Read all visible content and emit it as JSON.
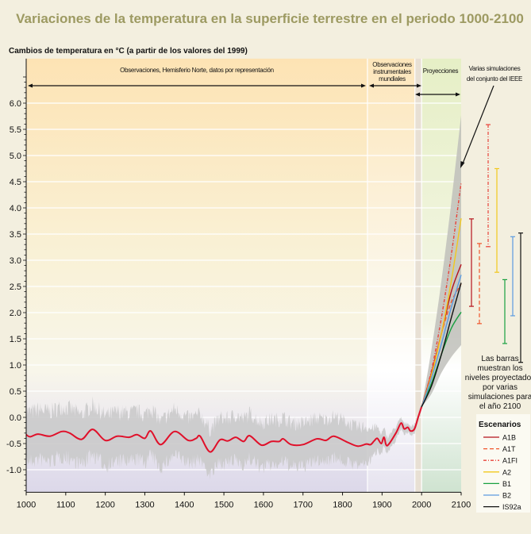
{
  "chart_data": {
    "type": "line",
    "title": "Variaciones de la temperatura en la superficie terrestre en el periodo 1000-2100",
    "ylabel": "Cambios de temperatura en °C (a partir de los valores del 1999)",
    "xlabel": "",
    "xlim": [
      1000,
      2100
    ],
    "ylim": [
      -1.43,
      6.85
    ],
    "x_ticks": [
      "1000",
      "1100",
      "1200",
      "1300",
      "1400",
      "1500",
      "1600",
      "1700",
      "1800",
      "1900",
      "2000",
      "2100"
    ],
    "y_ticks": [
      "6.0",
      "5.5",
      "5.0",
      "4.5",
      "4.0",
      "3.5",
      "3.0",
      "2.5",
      "2.0",
      "1.5",
      "1.0",
      "0.5",
      "0.0",
      "-0.5",
      "-1.0"
    ],
    "grid": true,
    "regions": [
      {
        "label": "Observaciones, Hemisferio Norte, datos por representación",
        "range": [
          1000,
          1863
        ]
      },
      {
        "label": "Observaciones instrumentales mundiales",
        "range": [
          1863,
          1983
        ]
      },
      {
        "label": "Proyecciones",
        "range": [
          2000,
          2100
        ]
      }
    ],
    "observed": {
      "color": "#e0102a",
      "x": [
        1000,
        1010,
        1030,
        1060,
        1090,
        1110,
        1140,
        1168,
        1200,
        1230,
        1260,
        1280,
        1300,
        1315,
        1340,
        1375,
        1410,
        1430,
        1440,
        1465,
        1490,
        1510,
        1530,
        1550,
        1565,
        1595,
        1620,
        1640,
        1650,
        1670,
        1700,
        1735,
        1758,
        1778,
        1811,
        1838,
        1860,
        1871,
        1880,
        1888,
        1898,
        1905,
        1913,
        1935,
        1948,
        1956,
        1965,
        1972,
        1982,
        1992,
        2000
      ],
      "y": [
        -0.33,
        -0.37,
        -0.32,
        -0.36,
        -0.27,
        -0.3,
        -0.42,
        -0.23,
        -0.44,
        -0.36,
        -0.38,
        -0.33,
        -0.4,
        -0.26,
        -0.52,
        -0.27,
        -0.44,
        -0.4,
        -0.36,
        -0.66,
        -0.43,
        -0.45,
        -0.38,
        -0.46,
        -0.35,
        -0.53,
        -0.46,
        -0.46,
        -0.41,
        -0.52,
        -0.52,
        -0.41,
        -0.44,
        -0.36,
        -0.47,
        -0.55,
        -0.51,
        -0.52,
        -0.45,
        -0.4,
        -0.5,
        -0.38,
        -0.54,
        -0.3,
        -0.11,
        -0.22,
        -0.19,
        -0.26,
        -0.22,
        0.02,
        0.2
      ]
    },
    "observed_uncertainty": {
      "color": "#c8c8c8",
      "x": [
        1000,
        1200,
        1400,
        1600,
        1800,
        1860,
        1900,
        1950,
        2000
      ],
      "half_width": [
        0.55,
        0.55,
        0.5,
        0.5,
        0.45,
        0.4,
        0.2,
        0.12,
        0.08
      ]
    },
    "projection_envelope": {
      "color": "#bfbfbb",
      "x": [
        2000,
        2025,
        2050,
        2075,
        2100
      ],
      "upper": [
        0.2,
        1.3,
        2.6,
        4.1,
        5.77
      ],
      "lower": [
        0.2,
        0.45,
        0.85,
        1.15,
        1.38
      ]
    },
    "series": [
      {
        "name": "A1B",
        "color": "#b5121b",
        "dash": "",
        "x": [
          2000,
          2025,
          2050,
          2075,
          2100
        ],
        "y": [
          0.2,
          0.85,
          1.6,
          2.4,
          2.92
        ]
      },
      {
        "name": "A1T",
        "color": "#f0552a",
        "dash": "5,3",
        "x": [
          2000,
          2025,
          2050,
          2075,
          2100
        ],
        "y": [
          0.2,
          0.85,
          1.6,
          2.2,
          2.55
        ]
      },
      {
        "name": "A1FI",
        "color": "#e8433a",
        "dash": "4,2,1,2",
        "x": [
          2000,
          2025,
          2050,
          2075,
          2100
        ],
        "y": [
          0.2,
          0.9,
          1.9,
          3.1,
          4.48
        ]
      },
      {
        "name": "A2",
        "color": "#f2c81e",
        "dash": "",
        "x": [
          2000,
          2025,
          2050,
          2075,
          2100
        ],
        "y": [
          0.2,
          0.8,
          1.6,
          2.6,
          3.8
        ]
      },
      {
        "name": "B1",
        "color": "#18a040",
        "dash": "",
        "x": [
          2000,
          2025,
          2050,
          2075,
          2100
        ],
        "y": [
          0.2,
          0.65,
          1.2,
          1.7,
          2.01
        ]
      },
      {
        "name": "B2",
        "color": "#5b9be0",
        "dash": "",
        "x": [
          2000,
          2025,
          2050,
          2075,
          2100
        ],
        "y": [
          0.2,
          0.75,
          1.4,
          2.1,
          2.72
        ]
      },
      {
        "name": "IS92a",
        "color": "#111111",
        "dash": "",
        "x": [
          2000,
          2025,
          2050,
          2075,
          2100
        ],
        "y": [
          0.2,
          0.6,
          1.2,
          1.9,
          2.57
        ]
      }
    ],
    "bars_2100": [
      {
        "name": "A1B",
        "low": 2.12,
        "high": 3.79
      },
      {
        "name": "A1T",
        "low": 1.79,
        "high": 3.32
      },
      {
        "name": "A1FI",
        "low": 3.26,
        "high": 5.59
      },
      {
        "name": "A2",
        "low": 2.77,
        "high": 4.75
      },
      {
        "name": "B1",
        "low": 1.41,
        "high": 2.63
      },
      {
        "name": "B2",
        "low": 1.94,
        "high": 3.45
      },
      {
        "name": "IS92a",
        "low": 1.05,
        "high": 3.52
      }
    ],
    "annotations": {
      "ensemble": [
        "Varias simulaciones",
        "del conjunto del IEEE"
      ],
      "bars_note": [
        "Las barras",
        "muestran los",
        "niveles proyectados",
        "por varias",
        "simulaciones para",
        "el año 2100"
      ],
      "instrumental": [
        "Observaciones",
        "instrumentales",
        "mundiales"
      ]
    },
    "legend": {
      "title": "Escenarios",
      "placement": "bottom-right"
    }
  }
}
